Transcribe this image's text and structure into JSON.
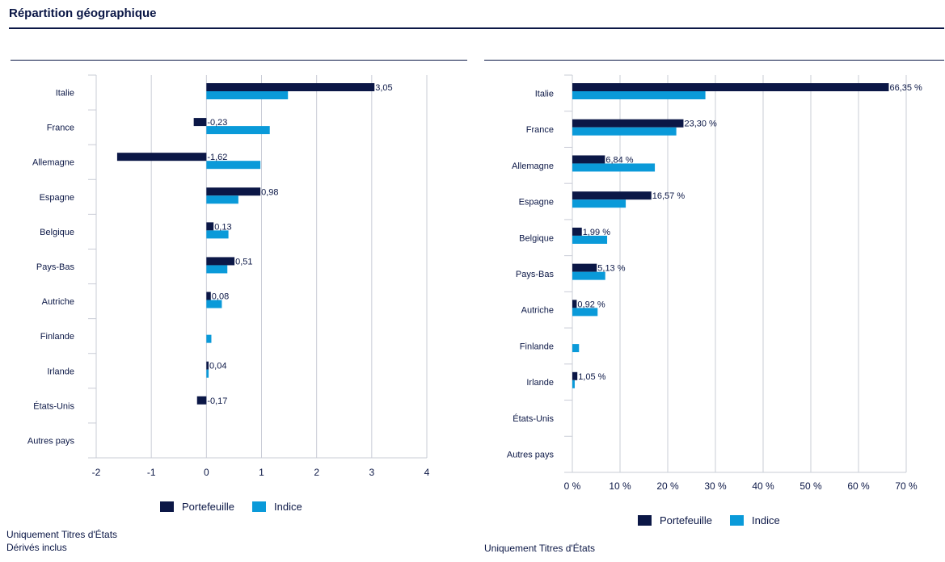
{
  "title": "Répartition géographique",
  "colors": {
    "portfolio": "#0b1746",
    "index": "#0a9ad9",
    "grid": "#c9ccd6",
    "text": "#0b1746"
  },
  "chart_data": [
    {
      "type": "bar",
      "orientation": "horizontal",
      "categories": [
        "Italie",
        "France",
        "Allemagne",
        "Espagne",
        "Belgique",
        "Pays-Bas",
        "Autriche",
        "Finlande",
        "Irlande",
        "États-Unis",
        "Autres pays"
      ],
      "series": [
        {
          "name": "Portefeuille",
          "color": "#0b1746",
          "values": [
            3.05,
            -0.23,
            -1.62,
            0.98,
            0.13,
            0.51,
            0.08,
            null,
            0.04,
            -0.17,
            null
          ]
        },
        {
          "name": "Indice",
          "color": "#0a9ad9",
          "values": [
            1.48,
            1.15,
            0.98,
            0.58,
            0.4,
            0.38,
            0.28,
            0.09,
            0.04,
            null,
            null
          ]
        }
      ],
      "data_labels": [
        "3,05",
        "-0,23",
        "-1,62",
        "0,98",
        "0,13",
        "0,51",
        "0,08",
        "",
        "0,04",
        "-0,17",
        ""
      ],
      "xlim": [
        -2,
        4
      ],
      "xticks": [
        "-2",
        "-1",
        "0",
        "1",
        "2",
        "3",
        "4"
      ],
      "xtick_values": [
        -2,
        -1,
        0,
        1,
        2,
        3,
        4
      ],
      "grid": true,
      "legend": "bottom",
      "notes": [
        "Uniquement Titres d'États",
        "Dérivés inclus"
      ]
    },
    {
      "type": "bar",
      "orientation": "horizontal",
      "categories": [
        "Italie",
        "France",
        "Allemagne",
        "Espagne",
        "Belgique",
        "Pays-Bas",
        "Autriche",
        "Finlande",
        "Irlande",
        "États-Unis",
        "Autres pays"
      ],
      "series": [
        {
          "name": "Portefeuille",
          "color": "#0b1746",
          "values": [
            66.35,
            23.3,
            6.84,
            16.57,
            1.99,
            5.13,
            0.92,
            null,
            1.05,
            null,
            null
          ]
        },
        {
          "name": "Indice",
          "color": "#0a9ad9",
          "values": [
            27.9,
            21.8,
            17.3,
            11.2,
            7.3,
            6.9,
            5.3,
            1.4,
            0.5,
            null,
            null
          ]
        }
      ],
      "data_labels": [
        "66,35 %",
        "23,30 %",
        "6,84 %",
        "16,57 %",
        "1,99 %",
        "5,13 %",
        "0,92 %",
        "",
        "1,05 %",
        "",
        ""
      ],
      "xlim": [
        0,
        70
      ],
      "xticks": [
        "0 %",
        "10 %",
        "20 %",
        "30 %",
        "40 %",
        "50 %",
        "60 %",
        "70 %"
      ],
      "xtick_values": [
        0,
        10,
        20,
        30,
        40,
        50,
        60,
        70
      ],
      "grid": true,
      "legend": "bottom",
      "notes": [
        "Uniquement Titres d'États"
      ]
    }
  ],
  "legend": {
    "portfolio_label": "Portefeuille",
    "index_label": "Indice"
  }
}
